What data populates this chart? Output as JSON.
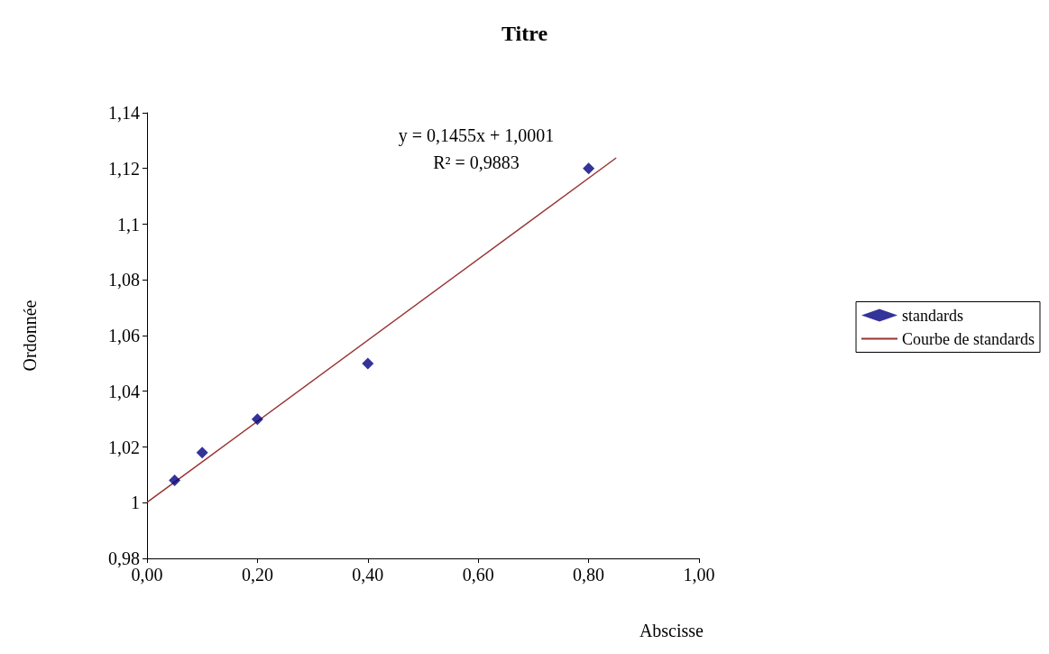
{
  "chart_data": {
    "type": "scatter",
    "title": "Titre",
    "xlabel": "Abscisse",
    "ylabel": "Ordonnée",
    "x": [
      0.05,
      0.1,
      0.2,
      0.4,
      0.8
    ],
    "series": [
      {
        "name": "standards",
        "color": "#000080",
        "marker": "diamond",
        "values": [
          1.008,
          1.018,
          1.03,
          1.05,
          1.12
        ]
      },
      {
        "name": "Courbe de standards",
        "type": "line",
        "color": "#993333",
        "marker": "none",
        "line_style": "solid",
        "x": [
          0,
          0.85
        ],
        "values": [
          1.0001,
          1.1238
        ]
      }
    ],
    "annotations": [
      "y = 0,1455x + 1,0001",
      "R² = 0,9883"
    ],
    "xlim": [
      0,
      1
    ],
    "xticks": [
      {
        "value": 0,
        "label": "0,00"
      },
      {
        "value": 0.2,
        "label": "0,20"
      },
      {
        "value": 0.4,
        "label": "0,40"
      },
      {
        "value": 0.6,
        "label": "0,60"
      },
      {
        "value": 0.8,
        "label": "0,80"
      },
      {
        "value": 1,
        "label": "1,00"
      }
    ],
    "ylim": [
      0.98,
      1.14
    ],
    "yticks": [
      {
        "value": 0.98,
        "label": "0,98"
      },
      1,
      {
        "value": 1.02,
        "label": "1,02"
      },
      {
        "value": 1.04,
        "label": "1,04"
      },
      {
        "value": 1.06,
        "label": "1,06"
      },
      {
        "value": 1.08,
        "label": "1,08"
      },
      {
        "value": 1.1,
        "label": "1,1"
      },
      {
        "value": 1.12,
        "label": "1,12"
      },
      {
        "value": 1.14,
        "label": "1,14"
      }
    ],
    "grid": false,
    "legend": "right"
  }
}
